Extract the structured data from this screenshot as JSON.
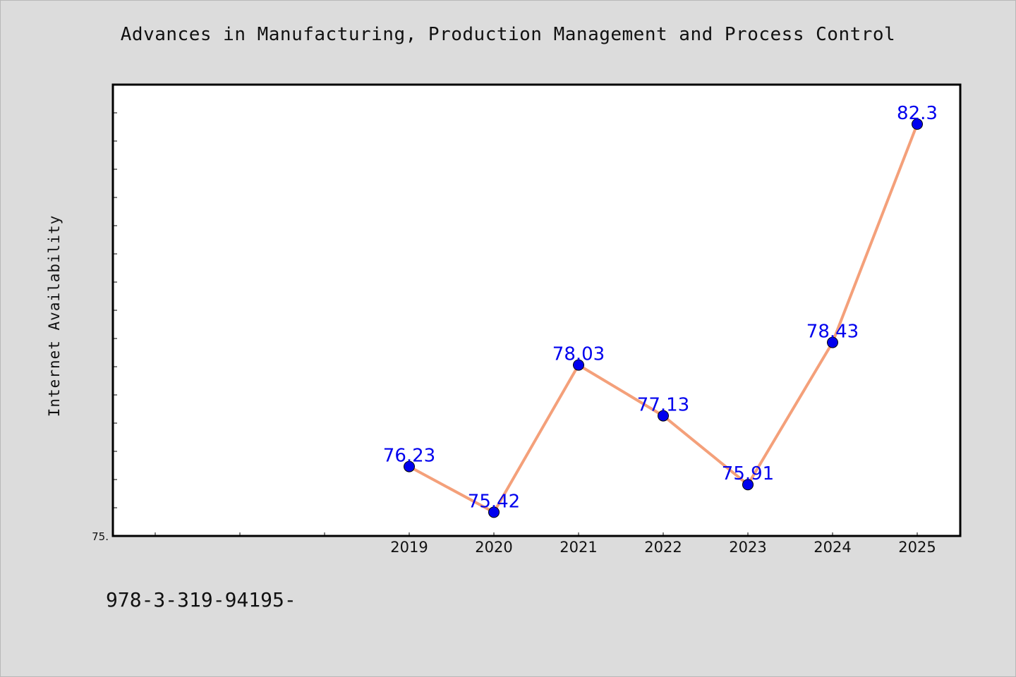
{
  "chart_data": {
    "type": "line",
    "title": "Advances in Manufacturing, Production Management and Process Control",
    "ylabel": "Internet Availability",
    "xlabel": "",
    "y_tick_label": "75.",
    "x_categories": [
      "2019",
      "2020",
      "2021",
      "2022",
      "2023",
      "2024",
      "2025"
    ],
    "series": [
      {
        "values": [
          76.23,
          75.42,
          78.03,
          77.13,
          75.91,
          78.43,
          82.3
        ],
        "data_labels": [
          "76.23",
          "75.42",
          "78.03",
          "77.13",
          "75.91",
          "78.43",
          "82.3"
        ]
      }
    ],
    "ylim": [
      75,
      83
    ],
    "grid": false,
    "line_color": "#f4a07a",
    "marker_color": "#0000ee",
    "label_color": "#0000ee"
  },
  "footer_text": "978-3-319-94195-"
}
